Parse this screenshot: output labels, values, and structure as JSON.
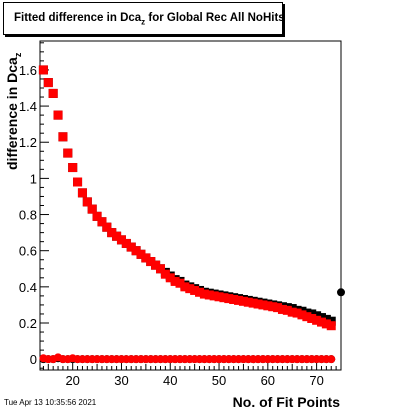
{
  "title": {
    "main": "Fitted difference in Dca",
    "sub": "z",
    "suffix": " for Global Rec All NoHits"
  },
  "axes": {
    "ylabel_main": "difference in Dca",
    "ylabel_sub": "z",
    "xlabel": "No. of Fit Points"
  },
  "timestamp": "Tue Apr 13 10:35:56 2021",
  "colors": {
    "series_black": "#000000",
    "series_red": "#ff0000",
    "axis": "#000000",
    "background": "#ffffff"
  },
  "chart_data": {
    "type": "scatter",
    "title": "Fitted difference in Dca_z for Global Rec All NoHits",
    "xlabel": "No. of Fit Points",
    "ylabel": "difference in Dca_z",
    "xlim": [
      13.3,
      75
    ],
    "ylim": [
      -0.06,
      1.76
    ],
    "x_ticks": [
      20,
      30,
      40,
      50,
      60,
      70
    ],
    "y_ticks": [
      0,
      0.2,
      0.4,
      0.6,
      0.8,
      1,
      1.2,
      1.4,
      1.6
    ],
    "y_tick_labels": [
      "0",
      "0.2",
      "0.4",
      "0.6",
      "0.8",
      "1",
      "1.2",
      "1.4",
      "1.6"
    ],
    "grid": false,
    "series": [
      {
        "marker": "square",
        "color": "#000000",
        "x": [
          14,
          15,
          16,
          17,
          18,
          19,
          20,
          21,
          22,
          23,
          24,
          25,
          26,
          27,
          28,
          29,
          30,
          31,
          32,
          33,
          34,
          35,
          36,
          37,
          38,
          39,
          40,
          41,
          42,
          43,
          44,
          45,
          46,
          47,
          48,
          49,
          50,
          51,
          52,
          53,
          54,
          55,
          56,
          57,
          58,
          59,
          60,
          61,
          62,
          63,
          64,
          65,
          66,
          67,
          68,
          69,
          70,
          71,
          72,
          73
        ],
        "values": [
          1.6,
          1.53,
          1.47,
          1.35,
          1.23,
          1.14,
          1.06,
          0.98,
          0.92,
          0.87,
          0.83,
          0.79,
          0.76,
          0.73,
          0.7,
          0.68,
          0.66,
          0.64,
          0.62,
          0.6,
          0.58,
          0.56,
          0.54,
          0.52,
          0.5,
          0.48,
          0.46,
          0.44,
          0.43,
          0.41,
          0.4,
          0.39,
          0.38,
          0.37,
          0.365,
          0.36,
          0.355,
          0.35,
          0.345,
          0.34,
          0.335,
          0.33,
          0.325,
          0.32,
          0.315,
          0.31,
          0.305,
          0.3,
          0.295,
          0.29,
          0.285,
          0.28,
          0.27,
          0.265,
          0.255,
          0.25,
          0.24,
          0.23,
          0.22,
          0.21
        ]
      },
      {
        "marker": "square",
        "color": "#ff0000",
        "x": [
          14,
          15,
          16,
          17,
          18,
          19,
          20,
          21,
          22,
          23,
          24,
          25,
          26,
          27,
          28,
          29,
          30,
          31,
          32,
          33,
          34,
          35,
          36,
          37,
          38,
          39,
          40,
          41,
          42,
          43,
          44,
          45,
          46,
          47,
          48,
          49,
          50,
          51,
          52,
          53,
          54,
          55,
          56,
          57,
          58,
          59,
          60,
          61,
          62,
          63,
          64,
          65,
          66,
          67,
          68,
          69,
          70,
          71,
          72,
          73
        ],
        "values": [
          1.6,
          1.53,
          1.47,
          1.35,
          1.23,
          1.14,
          1.06,
          0.98,
          0.92,
          0.87,
          0.83,
          0.79,
          0.76,
          0.73,
          0.7,
          0.68,
          0.66,
          0.64,
          0.62,
          0.6,
          0.58,
          0.56,
          0.54,
          0.52,
          0.5,
          0.47,
          0.45,
          0.43,
          0.42,
          0.4,
          0.39,
          0.38,
          0.37,
          0.36,
          0.355,
          0.35,
          0.345,
          0.34,
          0.335,
          0.33,
          0.325,
          0.32,
          0.315,
          0.31,
          0.305,
          0.3,
          0.295,
          0.29,
          0.285,
          0.275,
          0.27,
          0.26,
          0.255,
          0.245,
          0.235,
          0.225,
          0.215,
          0.205,
          0.195,
          0.185
        ]
      },
      {
        "marker": "circle",
        "color": "#000000",
        "x": [
          14,
          15,
          16,
          17,
          18,
          19,
          20,
          21,
          22,
          23,
          24,
          25,
          26,
          27,
          28,
          29,
          30,
          31,
          32,
          33,
          34,
          35,
          36,
          37,
          38,
          39,
          40,
          41,
          42,
          43,
          44,
          45,
          46,
          47,
          48,
          49,
          50,
          51,
          52,
          53,
          54,
          55,
          56,
          57,
          58,
          59,
          60,
          61,
          62,
          63,
          64,
          65,
          66,
          67,
          68,
          69,
          70,
          71,
          72,
          73,
          75
        ],
        "values": [
          0.0,
          0.0,
          0.0,
          0.005,
          0.0,
          0.0,
          0.0,
          0.0,
          0.0,
          0.0,
          0.0,
          0.0,
          0.0,
          0.0,
          0.0,
          0.0,
          0.0,
          0.0,
          0.0,
          0.0,
          0.0,
          0.0,
          0.0,
          0.0,
          0.0,
          0.0,
          0.0,
          0.0,
          0.0,
          0.0,
          0.0,
          0.0,
          0.0,
          0.0,
          0.0,
          0.0,
          0.0,
          0.0,
          0.0,
          0.0,
          0.0,
          0.0,
          0.0,
          0.0,
          0.0,
          0.0,
          0.0,
          0.0,
          0.0,
          0.0,
          0.0,
          0.0,
          0.0,
          0.0,
          0.0,
          0.0,
          0.0,
          0.0,
          0.0,
          0.0,
          0.37
        ]
      },
      {
        "marker": "circle",
        "color": "#ff0000",
        "x": [
          14,
          15,
          16,
          17,
          18,
          19,
          20,
          21,
          22,
          23,
          24,
          25,
          26,
          27,
          28,
          29,
          30,
          31,
          32,
          33,
          34,
          35,
          36,
          37,
          38,
          39,
          40,
          41,
          42,
          43,
          44,
          45,
          46,
          47,
          48,
          49,
          50,
          51,
          52,
          53,
          54,
          55,
          56,
          57,
          58,
          59,
          60,
          61,
          62,
          63,
          64,
          65,
          66,
          67,
          68,
          69,
          70,
          71,
          72,
          73
        ],
        "values": [
          0.005,
          0.0,
          0.0,
          0.01,
          0.0,
          0.0,
          0.005,
          0.0,
          0.0,
          0.0,
          0.0,
          0.0,
          0.0,
          0.0,
          0.0,
          0.0,
          0.0,
          0.0,
          0.0,
          0.0,
          0.0,
          0.0,
          0.0,
          0.0,
          0.0,
          0.0,
          0.0,
          0.0,
          0.0,
          0.0,
          0.0,
          0.0,
          0.0,
          0.0,
          0.0,
          0.0,
          0.0,
          0.0,
          0.0,
          0.0,
          0.0,
          0.0,
          0.0,
          0.0,
          0.0,
          0.0,
          0.0,
          0.0,
          0.0,
          0.0,
          0.0,
          0.0,
          0.0,
          0.0,
          0.0,
          0.0,
          0.0,
          0.0,
          0.0,
          0.0
        ]
      }
    ]
  }
}
